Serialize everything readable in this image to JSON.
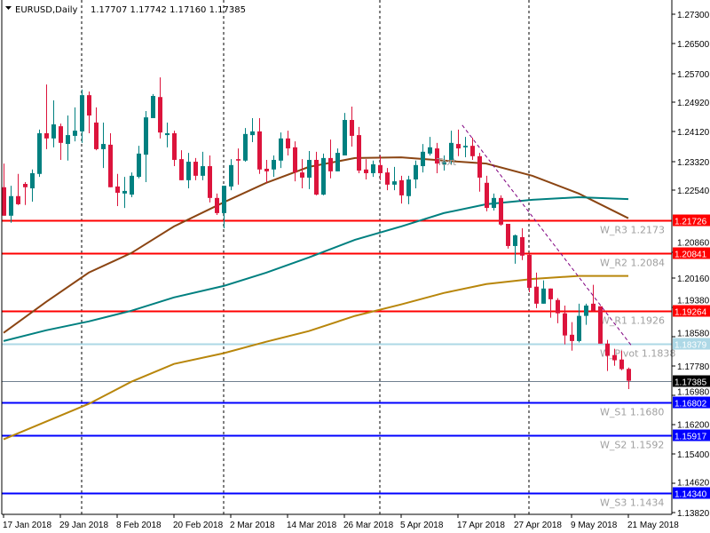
{
  "header": {
    "symbol": "EURUSD,Daily",
    "ohlc": "1.17707 1.17742 1.17160 1.17385"
  },
  "chart_data": {
    "type": "candlestick",
    "title": "EURUSD,Daily",
    "ylim": [
      1.1382,
      1.273
    ],
    "price_ticks": [
      "1.27300",
      "1.26500",
      "1.25700",
      "1.24920",
      "1.24120",
      "1.23320",
      "1.22540",
      "1.20860",
      "1.20160",
      "1.19380",
      "1.18580",
      "1.17780",
      "1.16980",
      "1.16200",
      "1.15400",
      "1.14620",
      "1.13820"
    ],
    "date_ticks": [
      {
        "index": 0,
        "label": "17 Jan 2018"
      },
      {
        "index": 8,
        "label": "29 Jan 2018"
      },
      {
        "index": 16,
        "label": "8 Feb 2018"
      },
      {
        "index": 24,
        "label": "20 Feb 2018"
      },
      {
        "index": 32,
        "label": "2 Mar 2018"
      },
      {
        "index": 40,
        "label": "14 Mar 2018"
      },
      {
        "index": 48,
        "label": "26 Mar 2018"
      },
      {
        "index": 56,
        "label": "5 Apr 2018"
      },
      {
        "index": 64,
        "label": "17 Apr 2018"
      },
      {
        "index": 72,
        "label": "27 Apr 2018"
      },
      {
        "index": 80,
        "label": "9 May 2018"
      },
      {
        "index": 88,
        "label": "21 May 2018"
      }
    ],
    "period_separators": [
      11,
      31,
      53,
      74
    ],
    "bull_color": "#008080",
    "bear_color": "#dc143c",
    "candles": [
      [
        1.2262,
        1.2326,
        1.2185,
        1.2185
      ],
      [
        1.2185,
        1.2266,
        1.2166,
        1.2238
      ],
      [
        1.2238,
        1.2298,
        1.2214,
        1.2216
      ],
      [
        1.2271,
        1.2276,
        1.2214,
        1.2262
      ],
      [
        1.2259,
        1.231,
        1.2223,
        1.23
      ],
      [
        1.2298,
        1.2418,
        1.229,
        1.2408
      ],
      [
        1.2408,
        1.254,
        1.2365,
        1.2394
      ],
      [
        1.2394,
        1.2497,
        1.237,
        1.2432
      ],
      [
        1.2427,
        1.2434,
        1.2336,
        1.2382
      ],
      [
        1.2379,
        1.2456,
        1.2334,
        1.2403
      ],
      [
        1.2401,
        1.2478,
        1.2386,
        1.2415
      ],
      [
        1.2413,
        1.2526,
        1.2382,
        1.2511
      ],
      [
        1.2511,
        1.2521,
        1.2408,
        1.2456
      ],
      [
        1.2437,
        1.2478,
        1.2362,
        1.2365
      ],
      [
        1.2365,
        1.2437,
        1.2314,
        1.2379
      ],
      [
        1.2377,
        1.2408,
        1.2262,
        1.2262
      ],
      [
        1.2264,
        1.2298,
        1.2211,
        1.2247
      ],
      [
        1.2245,
        1.229,
        1.2206,
        1.2252
      ],
      [
        1.2242,
        1.2302,
        1.2235,
        1.2293
      ],
      [
        1.229,
        1.2374,
        1.2286,
        1.2353
      ],
      [
        1.235,
        1.2468,
        1.2276,
        1.2451
      ],
      [
        1.2449,
        1.2514,
        1.2449,
        1.2509
      ],
      [
        1.2506,
        1.2559,
        1.2394,
        1.241
      ],
      [
        1.2403,
        1.2437,
        1.237,
        1.2408
      ],
      [
        1.2408,
        1.2415,
        1.2319,
        1.2336
      ],
      [
        1.2338,
        1.2362,
        1.2281,
        1.2281
      ],
      [
        1.2281,
        1.2355,
        1.2259,
        1.2331
      ],
      [
        1.2331,
        1.2341,
        1.2281,
        1.2293
      ],
      [
        1.2293,
        1.2358,
        1.2281,
        1.2319
      ],
      [
        1.2319,
        1.2348,
        1.2221,
        1.2233
      ],
      [
        1.2233,
        1.2245,
        1.2187,
        1.2192
      ],
      [
        1.2192,
        1.2266,
        1.2151,
        1.2266
      ],
      [
        1.2264,
        1.2338,
        1.2254,
        1.2322
      ],
      [
        1.2338,
        1.2367,
        1.2269,
        1.2334
      ],
      [
        1.2334,
        1.2422,
        1.2331,
        1.2406
      ],
      [
        1.2403,
        1.2449,
        1.2384,
        1.2413
      ],
      [
        1.2413,
        1.2449,
        1.2298,
        1.231
      ],
      [
        1.2312,
        1.2336,
        1.2274,
        1.2305
      ],
      [
        1.231,
        1.2348,
        1.229,
        1.2336
      ],
      [
        1.2334,
        1.241,
        1.2314,
        1.2394
      ],
      [
        1.2394,
        1.2415,
        1.2348,
        1.2367
      ],
      [
        1.237,
        1.2386,
        1.2278,
        1.2302
      ],
      [
        1.2302,
        1.2338,
        1.2259,
        1.2288
      ],
      [
        1.2288,
        1.236,
        1.2257,
        1.2336
      ],
      [
        1.2336,
        1.2358,
        1.224,
        1.2242
      ],
      [
        1.2242,
        1.2353,
        1.224,
        1.2341
      ],
      [
        1.2341,
        1.2391,
        1.2286,
        1.2305
      ],
      [
        1.2305,
        1.2367,
        1.2305,
        1.2355
      ],
      [
        1.2348,
        1.2463,
        1.2348,
        1.2444
      ],
      [
        1.2444,
        1.248,
        1.2372,
        1.2401
      ],
      [
        1.2403,
        1.2425,
        1.23,
        1.2307
      ],
      [
        1.231,
        1.2338,
        1.2283,
        1.23
      ],
      [
        1.23,
        1.2334,
        1.229,
        1.2324
      ],
      [
        1.2322,
        1.2348,
        1.2281,
        1.23
      ],
      [
        1.2302,
        1.2314,
        1.2254,
        1.2269
      ],
      [
        1.2269,
        1.2317,
        1.2254,
        1.2278
      ],
      [
        1.2281,
        1.2293,
        1.2218,
        1.224
      ],
      [
        1.2238,
        1.2293,
        1.2216,
        1.2283
      ],
      [
        1.2283,
        1.2334,
        1.2259,
        1.2322
      ],
      [
        1.2319,
        1.2379,
        1.2302,
        1.2358
      ],
      [
        1.2353,
        1.2398,
        1.2348,
        1.237
      ],
      [
        1.2367,
        1.2382,
        1.23,
        1.2326
      ],
      [
        1.2324,
        1.2348,
        1.2307,
        1.2331
      ],
      [
        1.2336,
        1.2415,
        1.2324,
        1.2382
      ],
      [
        1.2379,
        1.2418,
        1.2346,
        1.2367
      ],
      [
        1.237,
        1.2398,
        1.2343,
        1.2374
      ],
      [
        1.2374,
        1.2396,
        1.2336,
        1.2346
      ],
      [
        1.2346,
        1.2355,
        1.225,
        1.2288
      ],
      [
        1.2274,
        1.2293,
        1.2197,
        1.2206
      ],
      [
        1.2206,
        1.2245,
        1.2199,
        1.2233
      ],
      [
        1.2233,
        1.224,
        1.2158,
        1.2161
      ],
      [
        1.2163,
        1.2163,
        1.2096,
        1.2103
      ],
      [
        1.2103,
        1.2134,
        1.2055,
        1.2132
      ],
      [
        1.2127,
        1.2151,
        1.2065,
        1.2077
      ],
      [
        1.2079,
        1.2082,
        1.1978,
        1.199
      ],
      [
        1.1993,
        1.2031,
        1.1935,
        1.1947
      ],
      [
        1.1947,
        1.201,
        1.1947,
        1.1988
      ],
      [
        1.1988,
        1.1988,
        1.1909,
        1.1959
      ],
      [
        1.1957,
        1.1962,
        1.1894,
        1.1921
      ],
      [
        1.1921,
        1.1942,
        1.1837,
        1.1861
      ],
      [
        1.1863,
        1.1897,
        1.182,
        1.1846
      ],
      [
        1.1846,
        1.1947,
        1.1842,
        1.1914
      ],
      [
        1.1914,
        1.1947,
        1.189,
        1.1942
      ],
      [
        1.1947,
        1.1998,
        1.1926,
        1.1928
      ],
      [
        1.194,
        1.194,
        1.1839,
        1.1839
      ],
      [
        1.1839,
        1.1849,
        1.1765,
        1.1806
      ],
      [
        1.1808,
        1.1825,
        1.1779,
        1.1794
      ],
      [
        1.1796,
        1.182,
        1.1767,
        1.177
      ],
      [
        1.17707,
        1.17742,
        1.1716,
        1.17385
      ]
    ],
    "moving_averages": [
      {
        "name": "ma-brown",
        "color": "#8b4513",
        "points": [
          [
            0,
            1.1868
          ],
          [
            6,
            1.1952
          ],
          [
            12,
            1.2031
          ],
          [
            18,
            1.2084
          ],
          [
            24,
            1.2156
          ],
          [
            31,
            1.2221
          ],
          [
            37,
            1.2274
          ],
          [
            43,
            1.2317
          ],
          [
            49.5,
            1.2341
          ],
          [
            56,
            1.2343
          ],
          [
            62,
            1.2334
          ],
          [
            68,
            1.2326
          ],
          [
            74.5,
            1.2293
          ],
          [
            81,
            1.2245
          ],
          [
            88,
            1.2178
          ]
        ]
      },
      {
        "name": "ma-teal",
        "color": "#008080",
        "points": [
          [
            0,
            1.1846
          ],
          [
            6,
            1.1875
          ],
          [
            12,
            1.1899
          ],
          [
            18,
            1.1928
          ],
          [
            24,
            1.1964
          ],
          [
            31,
            1.1995
          ],
          [
            37,
            1.2031
          ],
          [
            43,
            1.2072
          ],
          [
            49.5,
            1.212
          ],
          [
            56,
            1.2156
          ],
          [
            62,
            1.2192
          ],
          [
            68,
            1.2216
          ],
          [
            74.5,
            1.2228
          ],
          [
            81,
            1.2235
          ],
          [
            88,
            1.223
          ]
        ]
      },
      {
        "name": "ma-gold",
        "color": "#b8860b",
        "points": [
          [
            0,
            1.158
          ],
          [
            6,
            1.1628
          ],
          [
            12,
            1.1676
          ],
          [
            18,
            1.1736
          ],
          [
            24,
            1.1784
          ],
          [
            31,
            1.1813
          ],
          [
            37,
            1.1844
          ],
          [
            43,
            1.1873
          ],
          [
            49.5,
            1.1914
          ],
          [
            56,
            1.1945
          ],
          [
            62,
            1.1976
          ],
          [
            68,
            1.2
          ],
          [
            74.5,
            1.2014
          ],
          [
            81,
            1.2022
          ],
          [
            88,
            1.2022
          ]
        ]
      }
    ],
    "trendline": {
      "color": "#800080",
      "from": [
        64.6,
        1.243
      ],
      "to": [
        88.5,
        1.1832
      ]
    },
    "text_object": {
      "label": "Text",
      "index": 62,
      "price": 1.2331
    },
    "levels": [
      {
        "name": "W_R3",
        "label": "W_R3 1.2173",
        "price": 1.21726,
        "box": "1.21726",
        "color": "#ff0000"
      },
      {
        "name": "W_R2",
        "label": "W_R2 1.2084",
        "price": 1.20841,
        "box": "1.20841",
        "color": "#ff0000"
      },
      {
        "name": "W_R1",
        "label": "W_R1 1.1926",
        "price": 1.19264,
        "box": "1.19264",
        "color": "#ff0000"
      },
      {
        "name": "W_Pivot",
        "label": "W_Pivot 1.1838",
        "price": 1.18379,
        "box": "1.18379",
        "color": "#add8e6"
      },
      {
        "name": "W_S1",
        "label": "W_S1 1.1680",
        "price": 1.16802,
        "box": "1.16802",
        "color": "#0000ff"
      },
      {
        "name": "W_S2",
        "label": "W_S2 1.1592",
        "price": 1.15917,
        "box": "1.15917",
        "color": "#0000ff"
      },
      {
        "name": "W_S3",
        "label": "W_S3 1.1434",
        "price": 1.1434,
        "box": "1.14340",
        "color": "#0000ff"
      }
    ],
    "current_price": {
      "price": 1.17385,
      "box": "1.17385",
      "color": "#708090"
    }
  }
}
